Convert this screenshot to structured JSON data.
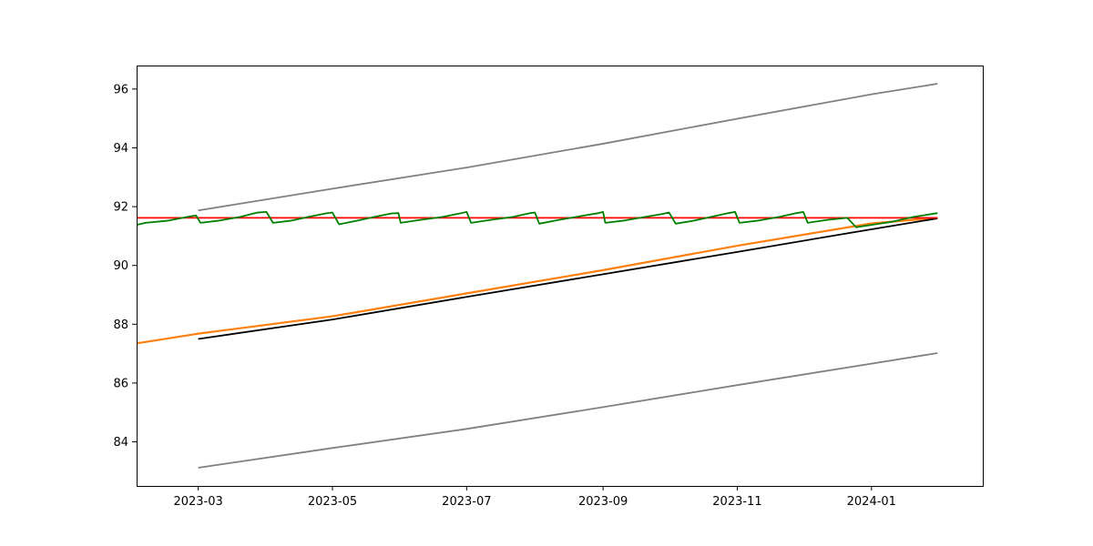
{
  "chart_data": {
    "type": "line",
    "title": "",
    "xlabel": "",
    "ylabel": "",
    "xlim": [
      "2023-02-01",
      "2024-02-21"
    ],
    "ylim": [
      82.5,
      96.8
    ],
    "grid": false,
    "legend": "none",
    "x_ticks": [
      "2023-03",
      "2023-05",
      "2023-07",
      "2023-09",
      "2023-11",
      "2024-01"
    ],
    "y_ticks": [
      84,
      86,
      88,
      90,
      92,
      94,
      96
    ],
    "series": [
      {
        "role": "upper band",
        "color": "#808080",
        "points": [
          [
            "2023-03-01",
            91.87
          ],
          [
            "2023-05-01",
            92.61
          ],
          [
            "2023-07-01",
            93.33
          ],
          [
            "2023-09-01",
            94.14
          ],
          [
            "2023-11-01",
            94.99
          ],
          [
            "2024-01-01",
            95.82
          ],
          [
            "2024-01-31",
            96.18
          ]
        ]
      },
      {
        "role": "lower band",
        "color": "#808080",
        "points": [
          [
            "2023-03-01",
            83.12
          ],
          [
            "2023-05-01",
            83.79
          ],
          [
            "2023-07-01",
            84.44
          ],
          [
            "2023-09-01",
            85.18
          ],
          [
            "2023-11-01",
            85.93
          ],
          [
            "2024-01-01",
            86.66
          ],
          [
            "2024-01-31",
            87.02
          ]
        ]
      },
      {
        "role": "observed",
        "color": "#ff7f0e",
        "points": [
          [
            "2023-02-01",
            87.35
          ],
          [
            "2023-03-01",
            87.68
          ],
          [
            "2023-05-01",
            88.27
          ],
          [
            "2023-07-01",
            89.05
          ],
          [
            "2023-09-01",
            89.84
          ],
          [
            "2023-11-01",
            90.67
          ],
          [
            "2024-01-01",
            91.43
          ],
          [
            "2024-01-31",
            91.62
          ]
        ]
      },
      {
        "role": "trend",
        "color": "#000000",
        "points": [
          [
            "2023-03-01",
            87.5
          ],
          [
            "2023-05-01",
            88.16
          ],
          [
            "2023-07-01",
            88.93
          ],
          [
            "2023-09-01",
            89.7
          ],
          [
            "2023-11-01",
            90.46
          ],
          [
            "2024-01-01",
            91.23
          ],
          [
            "2024-01-31",
            91.6
          ]
        ]
      },
      {
        "role": "mean level",
        "color": "#ff0000",
        "points": [
          [
            "2023-02-01",
            91.62
          ],
          [
            "2024-01-31",
            91.62
          ]
        ]
      },
      {
        "role": "seasonal",
        "color": "#008000",
        "points": [
          [
            "2023-02-01",
            91.38
          ],
          [
            "2023-02-05",
            91.45
          ],
          [
            "2023-02-15",
            91.52
          ],
          [
            "2023-02-24",
            91.65
          ],
          [
            "2023-02-28",
            91.7
          ],
          [
            "2023-03-02",
            91.45
          ],
          [
            "2023-03-10",
            91.52
          ],
          [
            "2023-03-20",
            91.65
          ],
          [
            "2023-03-28",
            91.8
          ],
          [
            "2023-04-01",
            91.82
          ],
          [
            "2023-04-04",
            91.45
          ],
          [
            "2023-04-12",
            91.52
          ],
          [
            "2023-04-20",
            91.65
          ],
          [
            "2023-04-28",
            91.77
          ],
          [
            "2023-05-01",
            91.8
          ],
          [
            "2023-05-04",
            91.4
          ],
          [
            "2023-05-12",
            91.52
          ],
          [
            "2023-05-20",
            91.65
          ],
          [
            "2023-05-28",
            91.77
          ],
          [
            "2023-05-31",
            91.78
          ],
          [
            "2023-06-01",
            91.45
          ],
          [
            "2023-06-10",
            91.55
          ],
          [
            "2023-06-20",
            91.65
          ],
          [
            "2023-06-28",
            91.77
          ],
          [
            "2023-07-01",
            91.82
          ],
          [
            "2023-07-03",
            91.45
          ],
          [
            "2023-07-12",
            91.55
          ],
          [
            "2023-07-22",
            91.65
          ],
          [
            "2023-07-30",
            91.78
          ],
          [
            "2023-08-01",
            91.8
          ],
          [
            "2023-08-03",
            91.42
          ],
          [
            "2023-08-12",
            91.55
          ],
          [
            "2023-08-22",
            91.68
          ],
          [
            "2023-08-30",
            91.78
          ],
          [
            "2023-09-01",
            91.82
          ],
          [
            "2023-09-02",
            91.45
          ],
          [
            "2023-09-10",
            91.52
          ],
          [
            "2023-09-20",
            91.65
          ],
          [
            "2023-09-28",
            91.75
          ],
          [
            "2023-10-01",
            91.8
          ],
          [
            "2023-10-04",
            91.42
          ],
          [
            "2023-10-12",
            91.52
          ],
          [
            "2023-10-20",
            91.65
          ],
          [
            "2023-10-28",
            91.78
          ],
          [
            "2023-10-31",
            91.82
          ],
          [
            "2023-11-02",
            91.45
          ],
          [
            "2023-11-10",
            91.52
          ],
          [
            "2023-11-20",
            91.65
          ],
          [
            "2023-11-28",
            91.78
          ],
          [
            "2023-12-01",
            91.82
          ],
          [
            "2023-12-03",
            91.45
          ],
          [
            "2023-12-12",
            91.55
          ],
          [
            "2023-12-21",
            91.62
          ],
          [
            "2023-12-25",
            91.3
          ],
          [
            "2024-01-01",
            91.38
          ],
          [
            "2024-01-10",
            91.48
          ],
          [
            "2024-01-20",
            91.65
          ],
          [
            "2024-01-31",
            91.78
          ]
        ]
      }
    ]
  }
}
